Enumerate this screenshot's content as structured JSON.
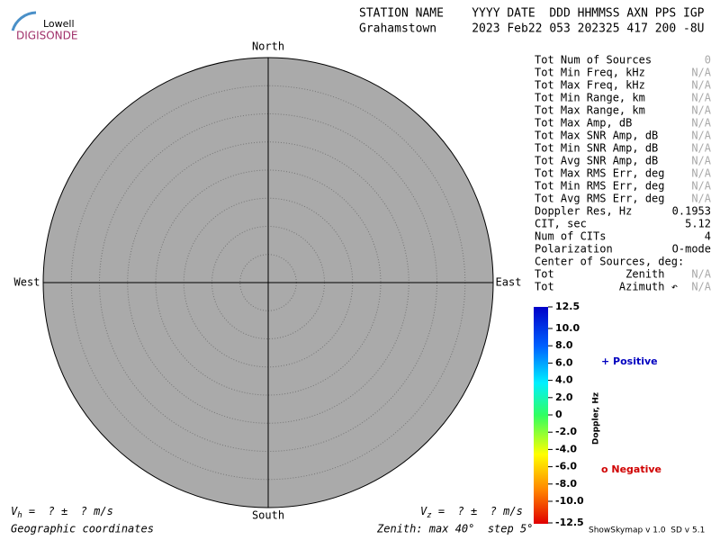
{
  "logo": {
    "top": "Lowell",
    "bottom": "DIGISONDE"
  },
  "header": {
    "line1": "STATION NAME    YYYY DATE  DDD HHMMSS AXN PPS IGP",
    "line2": "Grahamstown     2023 Feb22 053 202325 417 200 -8U"
  },
  "compass": {
    "north": "North",
    "south": "South",
    "west": "West",
    "east": "East"
  },
  "stats": [
    [
      "Tot Num of Sources",
      "0"
    ],
    [
      "Tot Min Freq, kHz",
      "N/A"
    ],
    [
      "Tot Max Freq, kHz",
      "N/A"
    ],
    [
      "Tot Min Range, km",
      "N/A"
    ],
    [
      "Tot Max Range, km",
      "N/A"
    ],
    [
      "Tot Max Amp, dB",
      "N/A"
    ],
    [
      "Tot Max SNR Amp, dB",
      "N/A"
    ],
    [
      "Tot Min SNR Amp, dB",
      "N/A"
    ],
    [
      "Tot Avg SNR Amp, dB",
      "N/A"
    ],
    [
      "Tot Max RMS Err, deg",
      "N/A"
    ],
    [
      "Tot Min RMS Err, deg",
      "N/A"
    ],
    [
      "Tot Avg RMS Err, deg",
      "N/A"
    ],
    [
      "Doppler Res, Hz",
      "0.1953"
    ],
    [
      "CIT, sec",
      "5.12"
    ],
    [
      "Num of CITs",
      "4"
    ],
    [
      "Polarization",
      "O-mode"
    ]
  ],
  "center": {
    "title": "Center of Sources, deg:",
    "rows": [
      [
        "Tot           Zenith",
        "N/A"
      ],
      [
        "Tot          Azimuth ↶",
        "N/A"
      ]
    ]
  },
  "colorbar": {
    "title": "Doppler, Hz",
    "labels": [
      "12.5",
      "10.0",
      "8.0",
      "6.0",
      "4.0",
      "2.0",
      "0",
      "-2.0",
      "-4.0",
      "-6.0",
      "-8.0",
      "-10.0",
      "-12.5"
    ]
  },
  "legend": {
    "positive": "+ Positive",
    "negative": "o Negative"
  },
  "footer": {
    "vh": {
      "symbol": "V",
      "sub": "h",
      "text": " =  ? ±  ? m/s"
    },
    "vz": {
      "symbol": "V",
      "sub": "z",
      "text": " =  ? ±  ? m/s"
    },
    "coords": "Geographic coordinates",
    "zenith": "Zenith: max 40°  step 5°",
    "version": "ShowSkymap v 1.0  SD v 5.1"
  }
}
